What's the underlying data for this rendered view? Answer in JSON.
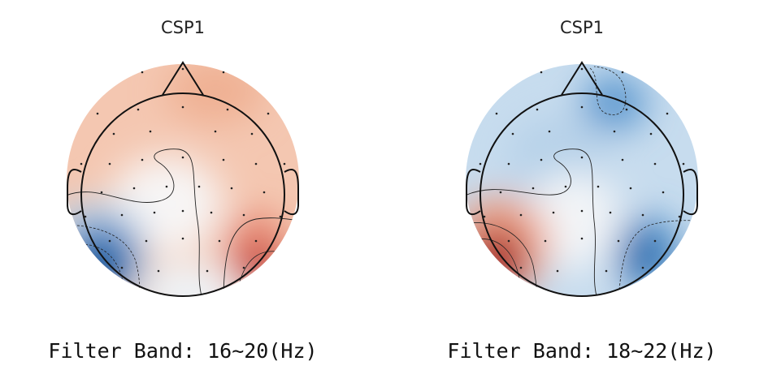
{
  "panels": [
    {
      "title": "CSP1",
      "band_label": "Filter Band: 16~20(Hz)",
      "colormap": "diverging red-blue",
      "blobs": [
        {
          "polarity": "positive",
          "color": "#c31b2b",
          "region": "lower-right"
        },
        {
          "polarity": "negative",
          "color": "#195ea8",
          "region": "lower-left"
        },
        {
          "polarity": "positive-weak",
          "color": "#f0b096",
          "region": "frontal"
        }
      ]
    },
    {
      "title": "CSP1",
      "band_label": "Filter Band: 18~22(Hz)",
      "colormap": "diverging red-blue",
      "blobs": [
        {
          "polarity": "positive",
          "color": "#9e0f22",
          "region": "lower-left"
        },
        {
          "polarity": "negative",
          "color": "#2a6db3",
          "region": "lower-right"
        },
        {
          "polarity": "negative",
          "color": "#4f8dc6",
          "region": "upper-right"
        },
        {
          "polarity": "negative-weak",
          "color": "#b6d3e8",
          "region": "background"
        }
      ]
    }
  ]
}
